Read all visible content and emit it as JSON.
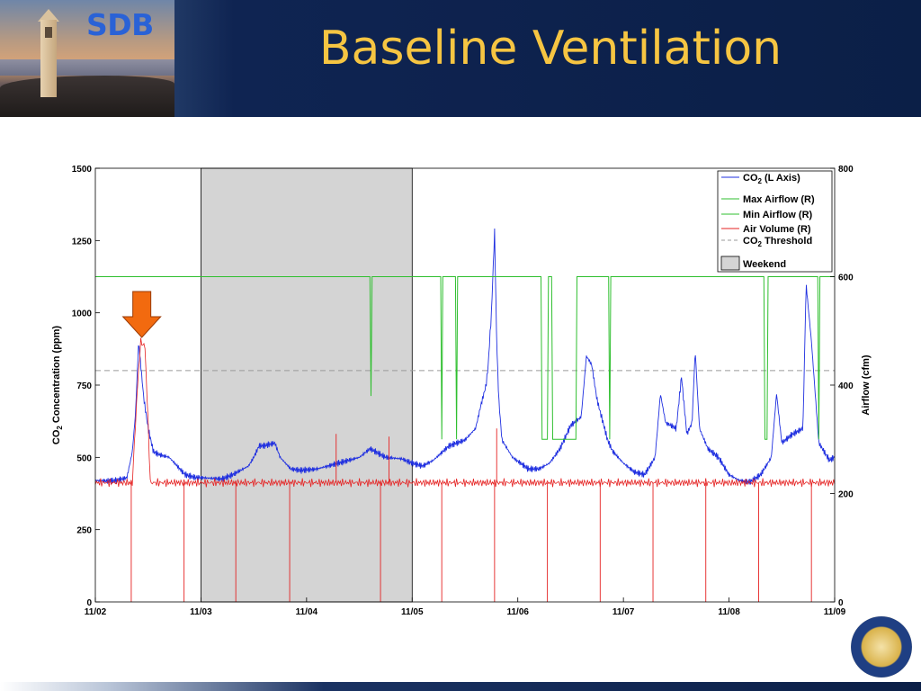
{
  "header": {
    "logo_text": "SDB",
    "title": "Baseline Ventilation"
  },
  "colors": {
    "header_bg": "#0b1f47",
    "title": "#f6c542",
    "logo": "#2a62d6",
    "co2": "#1f2fe0",
    "airflow_max": "#2fbf2f",
    "airflow_min": "#2fbf2f",
    "air_volume": "#e52222",
    "threshold": "#9a9a9a",
    "weekend": "#d4d4d4",
    "arrow": "#f26a0f"
  },
  "icons": {
    "seal": "uc-seal-icon",
    "arrow": "arrow-down-icon"
  },
  "chart_data": {
    "type": "line",
    "left_axis": {
      "label_prefix": "CO",
      "label_sub": "2",
      "label_suffix": " Concentration (ppm)",
      "lim": [
        0,
        1500
      ],
      "ticks": [
        0,
        250,
        500,
        750,
        1000,
        1250,
        1500
      ]
    },
    "right_axis": {
      "label": "Airflow (cfm)",
      "lim": [
        0,
        800
      ],
      "ticks": [
        0,
        200,
        400,
        600,
        800
      ]
    },
    "x_axis": {
      "lim_days": [
        0,
        7
      ],
      "tick_labels": [
        "11/02",
        "11/03",
        "11/04",
        "11/05",
        "11/06",
        "11/07",
        "11/08",
        "11/09"
      ]
    },
    "grid": false,
    "legend": {
      "position": "top-right",
      "items": [
        {
          "key": "co2",
          "text_prefix": "CO",
          "text_sub": "2",
          "text_suffix": " (L Axis)",
          "style": "line"
        },
        {
          "key": "max_airflow",
          "text": "Max Airflow (R)",
          "style": "line"
        },
        {
          "key": "min_airflow",
          "text": "Min Airflow (R)",
          "style": "line"
        },
        {
          "key": "air_volume",
          "text": "Air Volume (R)",
          "style": "line"
        },
        {
          "key": "threshold",
          "text_prefix": "CO",
          "text_sub": "2",
          "text_suffix": " Threshold",
          "style": "dashed"
        },
        {
          "key": "weekend",
          "text": "Weekend",
          "style": "patch"
        }
      ]
    },
    "weekend_span": {
      "x_start": 1.0,
      "x_end": 3.0
    },
    "threshold": {
      "axis": "left",
      "value": 800
    },
    "annotation_arrow_x": 0.44,
    "series": [
      {
        "key": "co2",
        "axis": "left",
        "points": [
          [
            0,
            420
          ],
          [
            0.1,
            418
          ],
          [
            0.2,
            420
          ],
          [
            0.3,
            430
          ],
          [
            0.35,
            520
          ],
          [
            0.38,
            650
          ],
          [
            0.41,
            900
          ],
          [
            0.43,
            820
          ],
          [
            0.46,
            700
          ],
          [
            0.5,
            600
          ],
          [
            0.55,
            520
          ],
          [
            0.6,
            510
          ],
          [
            0.7,
            500
          ],
          [
            0.75,
            480
          ],
          [
            0.85,
            440
          ],
          [
            0.95,
            430
          ],
          [
            1.0,
            430
          ],
          [
            1.2,
            425
          ],
          [
            1.3,
            440
          ],
          [
            1.45,
            470
          ],
          [
            1.5,
            500
          ],
          [
            1.55,
            540
          ],
          [
            1.6,
            540
          ],
          [
            1.7,
            550
          ],
          [
            1.75,
            500
          ],
          [
            1.85,
            460
          ],
          [
            1.95,
            455
          ],
          [
            2.1,
            460
          ],
          [
            2.3,
            480
          ],
          [
            2.5,
            500
          ],
          [
            2.6,
            530
          ],
          [
            2.65,
            520
          ],
          [
            2.75,
            500
          ],
          [
            2.9,
            495
          ],
          [
            3.0,
            480
          ],
          [
            3.1,
            470
          ],
          [
            3.2,
            490
          ],
          [
            3.35,
            540
          ],
          [
            3.5,
            560
          ],
          [
            3.6,
            600
          ],
          [
            3.65,
            680
          ],
          [
            3.7,
            750
          ],
          [
            3.72,
            820
          ],
          [
            3.75,
            1000
          ],
          [
            3.78,
            1280
          ],
          [
            3.8,
            900
          ],
          [
            3.82,
            700
          ],
          [
            3.85,
            560
          ],
          [
            3.95,
            500
          ],
          [
            4.1,
            460
          ],
          [
            4.2,
            460
          ],
          [
            4.3,
            480
          ],
          [
            4.4,
            530
          ],
          [
            4.5,
            610
          ],
          [
            4.6,
            640
          ],
          [
            4.65,
            850
          ],
          [
            4.7,
            820
          ],
          [
            4.75,
            700
          ],
          [
            4.85,
            560
          ],
          [
            4.9,
            520
          ],
          [
            5.0,
            480
          ],
          [
            5.1,
            450
          ],
          [
            5.2,
            440
          ],
          [
            5.3,
            500
          ],
          [
            5.35,
            720
          ],
          [
            5.4,
            620
          ],
          [
            5.5,
            600
          ],
          [
            5.55,
            780
          ],
          [
            5.6,
            580
          ],
          [
            5.65,
            620
          ],
          [
            5.68,
            870
          ],
          [
            5.72,
            600
          ],
          [
            5.8,
            530
          ],
          [
            5.9,
            500
          ],
          [
            6.0,
            440
          ],
          [
            6.1,
            420
          ],
          [
            6.2,
            415
          ],
          [
            6.3,
            440
          ],
          [
            6.4,
            500
          ],
          [
            6.45,
            720
          ],
          [
            6.5,
            550
          ],
          [
            6.6,
            580
          ],
          [
            6.7,
            600
          ],
          [
            6.73,
            1100
          ],
          [
            6.78,
            900
          ],
          [
            6.85,
            550
          ],
          [
            6.95,
            490
          ],
          [
            7.0,
            500
          ]
        ]
      },
      {
        "key": "max_airflow",
        "axis": "right",
        "points": [
          [
            0,
            600
          ],
          [
            2.6,
            600
          ],
          [
            2.61,
            380
          ],
          [
            2.62,
            600
          ],
          [
            3.27,
            600
          ],
          [
            3.28,
            300
          ],
          [
            3.29,
            600
          ],
          [
            3.41,
            600
          ],
          [
            3.42,
            300
          ],
          [
            3.43,
            600
          ],
          [
            4.22,
            600
          ],
          [
            4.23,
            300
          ],
          [
            4.28,
            300
          ],
          [
            4.29,
            600
          ],
          [
            4.32,
            600
          ],
          [
            4.33,
            300
          ],
          [
            4.55,
            300
          ],
          [
            4.56,
            600
          ],
          [
            4.86,
            600
          ],
          [
            4.87,
            300
          ],
          [
            4.88,
            600
          ],
          [
            6.33,
            600
          ],
          [
            6.34,
            300
          ],
          [
            6.36,
            300
          ],
          [
            6.37,
            600
          ],
          [
            6.84,
            600
          ],
          [
            6.85,
            300
          ],
          [
            6.86,
            600
          ],
          [
            7.0,
            600
          ]
        ]
      },
      {
        "key": "air_volume",
        "axis": "right",
        "points": [
          [
            0,
            220
          ],
          [
            0.35,
            220
          ],
          [
            0.4,
            400
          ],
          [
            0.43,
            480
          ],
          [
            0.47,
            470
          ],
          [
            0.5,
            330
          ],
          [
            0.52,
            220
          ],
          [
            7.0,
            220
          ]
        ],
        "downward_spikes_x": [
          0.34,
          0.84,
          1.33,
          1.84,
          2.7,
          3.28,
          3.78,
          4.28,
          4.78,
          5.28,
          5.78,
          6.28,
          6.78
        ],
        "upward_spikes": [
          [
            2.28,
            310
          ],
          [
            2.78,
            305
          ],
          [
            3.8,
            320
          ]
        ]
      }
    ]
  }
}
